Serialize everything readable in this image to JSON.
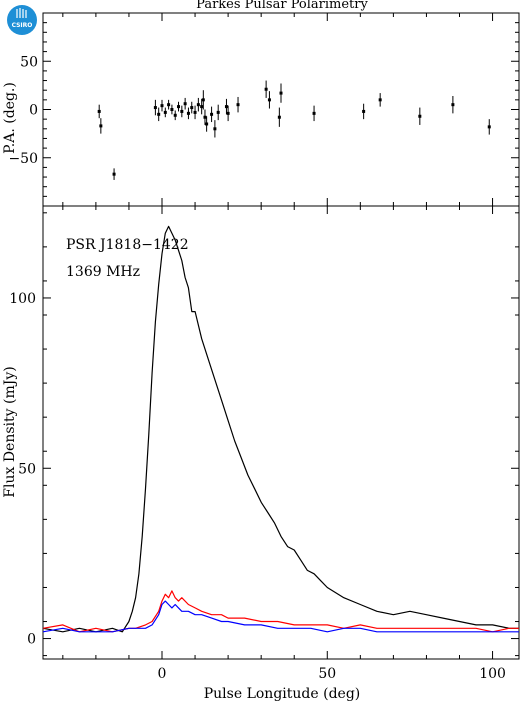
{
  "logo": {
    "text": "CSIRO",
    "color": "#1e8fd6"
  },
  "title": "Parkes Pulsar Polarimetry",
  "colors": {
    "total": "#000000",
    "linear": "#ff0000",
    "circular": "#0000ff",
    "frame": "#000000"
  },
  "chart_data": [
    {
      "type": "scatter",
      "panel": "top",
      "ylabel": "P.A. (deg.)",
      "xlim": [
        -36,
        108
      ],
      "ylim": [
        -100,
        100
      ],
      "yticks": [
        -50,
        0,
        50
      ],
      "ytick_labels": [
        "−50",
        "0",
        "50"
      ],
      "grid": false,
      "points": [
        {
          "x": -19,
          "y": -2,
          "err": 7
        },
        {
          "x": -18.5,
          "y": -17,
          "err": 8
        },
        {
          "x": -14.5,
          "y": -67,
          "err": 6
        },
        {
          "x": -2,
          "y": 2,
          "err": 8
        },
        {
          "x": -1,
          "y": -5,
          "err": 7
        },
        {
          "x": 0,
          "y": 4,
          "err": 6
        },
        {
          "x": 1,
          "y": -3,
          "err": 5
        },
        {
          "x": 2,
          "y": 5,
          "err": 5
        },
        {
          "x": 3,
          "y": 0,
          "err": 5
        },
        {
          "x": 4,
          "y": -6,
          "err": 5
        },
        {
          "x": 5,
          "y": 3,
          "err": 5
        },
        {
          "x": 6,
          "y": -2,
          "err": 6
        },
        {
          "x": 7,
          "y": 6,
          "err": 6
        },
        {
          "x": 8,
          "y": -4,
          "err": 6
        },
        {
          "x": 9,
          "y": 2,
          "err": 6
        },
        {
          "x": 10,
          "y": -3,
          "err": 7
        },
        {
          "x": 11,
          "y": 5,
          "err": 7
        },
        {
          "x": 12,
          "y": 3,
          "err": 8
        },
        {
          "x": 12.5,
          "y": 10,
          "err": 10
        },
        {
          "x": 13,
          "y": -8,
          "err": 8
        },
        {
          "x": 13.5,
          "y": -15,
          "err": 8
        },
        {
          "x": 15,
          "y": -5,
          "err": 8
        },
        {
          "x": 16,
          "y": -20,
          "err": 9
        },
        {
          "x": 17,
          "y": -3,
          "err": 8
        },
        {
          "x": 19.5,
          "y": 3,
          "err": 8
        },
        {
          "x": 20,
          "y": -4,
          "err": 8
        },
        {
          "x": 23,
          "y": 5,
          "err": 8
        },
        {
          "x": 31.5,
          "y": 21,
          "err": 9
        },
        {
          "x": 32.5,
          "y": 10,
          "err": 9
        },
        {
          "x": 35.5,
          "y": -8,
          "err": 10
        },
        {
          "x": 36,
          "y": 17,
          "err": 10
        },
        {
          "x": 46,
          "y": -4,
          "err": 8
        },
        {
          "x": 61,
          "y": -2,
          "err": 8
        },
        {
          "x": 66,
          "y": 10,
          "err": 7
        },
        {
          "x": 78,
          "y": -7,
          "err": 9
        },
        {
          "x": 88,
          "y": 5,
          "err": 9
        },
        {
          "x": 99,
          "y": -18,
          "err": 8
        }
      ]
    },
    {
      "type": "line",
      "panel": "bottom",
      "xlabel": "Pulse Longitude (deg)",
      "ylabel": "Flux Density (mJy)",
      "xlim": [
        -36,
        108
      ],
      "ylim": [
        -6,
        127
      ],
      "xticks": [
        0,
        50,
        100
      ],
      "xtick_labels": [
        "0",
        "50",
        "100"
      ],
      "yticks": [
        0,
        50,
        100
      ],
      "ytick_labels": [
        "0",
        "50",
        "100"
      ],
      "grid": false,
      "annotations": [
        "PSR J1818−1422",
        "1369 MHz"
      ],
      "series": [
        {
          "color": "#000000",
          "x": [
            -36,
            -30,
            -25,
            -20,
            -15,
            -12,
            -10,
            -9,
            -8,
            -7,
            -6,
            -5,
            -4,
            -3,
            -2,
            -1,
            0,
            1,
            2,
            3,
            4,
            5,
            6,
            7,
            8,
            9,
            10,
            12,
            14,
            16,
            18,
            20,
            22,
            24,
            26,
            28,
            30,
            32,
            34,
            36,
            38,
            40,
            42,
            44,
            46,
            48,
            50,
            55,
            60,
            65,
            70,
            75,
            80,
            85,
            90,
            95,
            100,
            105,
            108
          ],
          "y": [
            3,
            2,
            3,
            2,
            3,
            2,
            5,
            8,
            12,
            19,
            30,
            44,
            60,
            78,
            93,
            104,
            113,
            119,
            121,
            119,
            117,
            114,
            111,
            106,
            103,
            96,
            96,
            88,
            82,
            76,
            70,
            64,
            58,
            53,
            48,
            44,
            40,
            37,
            34,
            30,
            27,
            26,
            23,
            20,
            19,
            17,
            15,
            12,
            10,
            8,
            7,
            8,
            7,
            6,
            5,
            4,
            4,
            3,
            3
          ]
        },
        {
          "color": "#ff0000",
          "x": [
            -36,
            -30,
            -25,
            -20,
            -15,
            -10,
            -8,
            -5,
            -3,
            -1,
            0,
            1,
            2,
            3,
            4,
            5,
            6,
            8,
            10,
            12,
            15,
            18,
            20,
            25,
            30,
            35,
            40,
            45,
            50,
            55,
            60,
            65,
            70,
            75,
            80,
            85,
            90,
            95,
            100,
            105,
            108
          ],
          "y": [
            3,
            4,
            2,
            3,
            2,
            3,
            3,
            4,
            5,
            8,
            11,
            13,
            12,
            14,
            12,
            11,
            12,
            10,
            9,
            8,
            7,
            7,
            6,
            6,
            5,
            5,
            4,
            4,
            4,
            3,
            4,
            3,
            3,
            3,
            3,
            3,
            3,
            3,
            2,
            3,
            3
          ]
        },
        {
          "color": "#0000ff",
          "x": [
            -36,
            -30,
            -25,
            -20,
            -15,
            -10,
            -8,
            -5,
            -3,
            -1,
            0,
            1,
            2,
            3,
            4,
            5,
            6,
            8,
            10,
            12,
            15,
            18,
            20,
            25,
            30,
            35,
            40,
            45,
            50,
            55,
            60,
            65,
            70,
            75,
            80,
            85,
            90,
            95,
            100,
            105,
            108
          ],
          "y": [
            2,
            3,
            2,
            2,
            2,
            3,
            3,
            3,
            4,
            7,
            10,
            11,
            10,
            9,
            10,
            9,
            8,
            8,
            7,
            7,
            6,
            5,
            5,
            4,
            4,
            3,
            3,
            3,
            2,
            3,
            3,
            2,
            2,
            2,
            2,
            2,
            2,
            2,
            2,
            2,
            2
          ]
        }
      ]
    }
  ]
}
